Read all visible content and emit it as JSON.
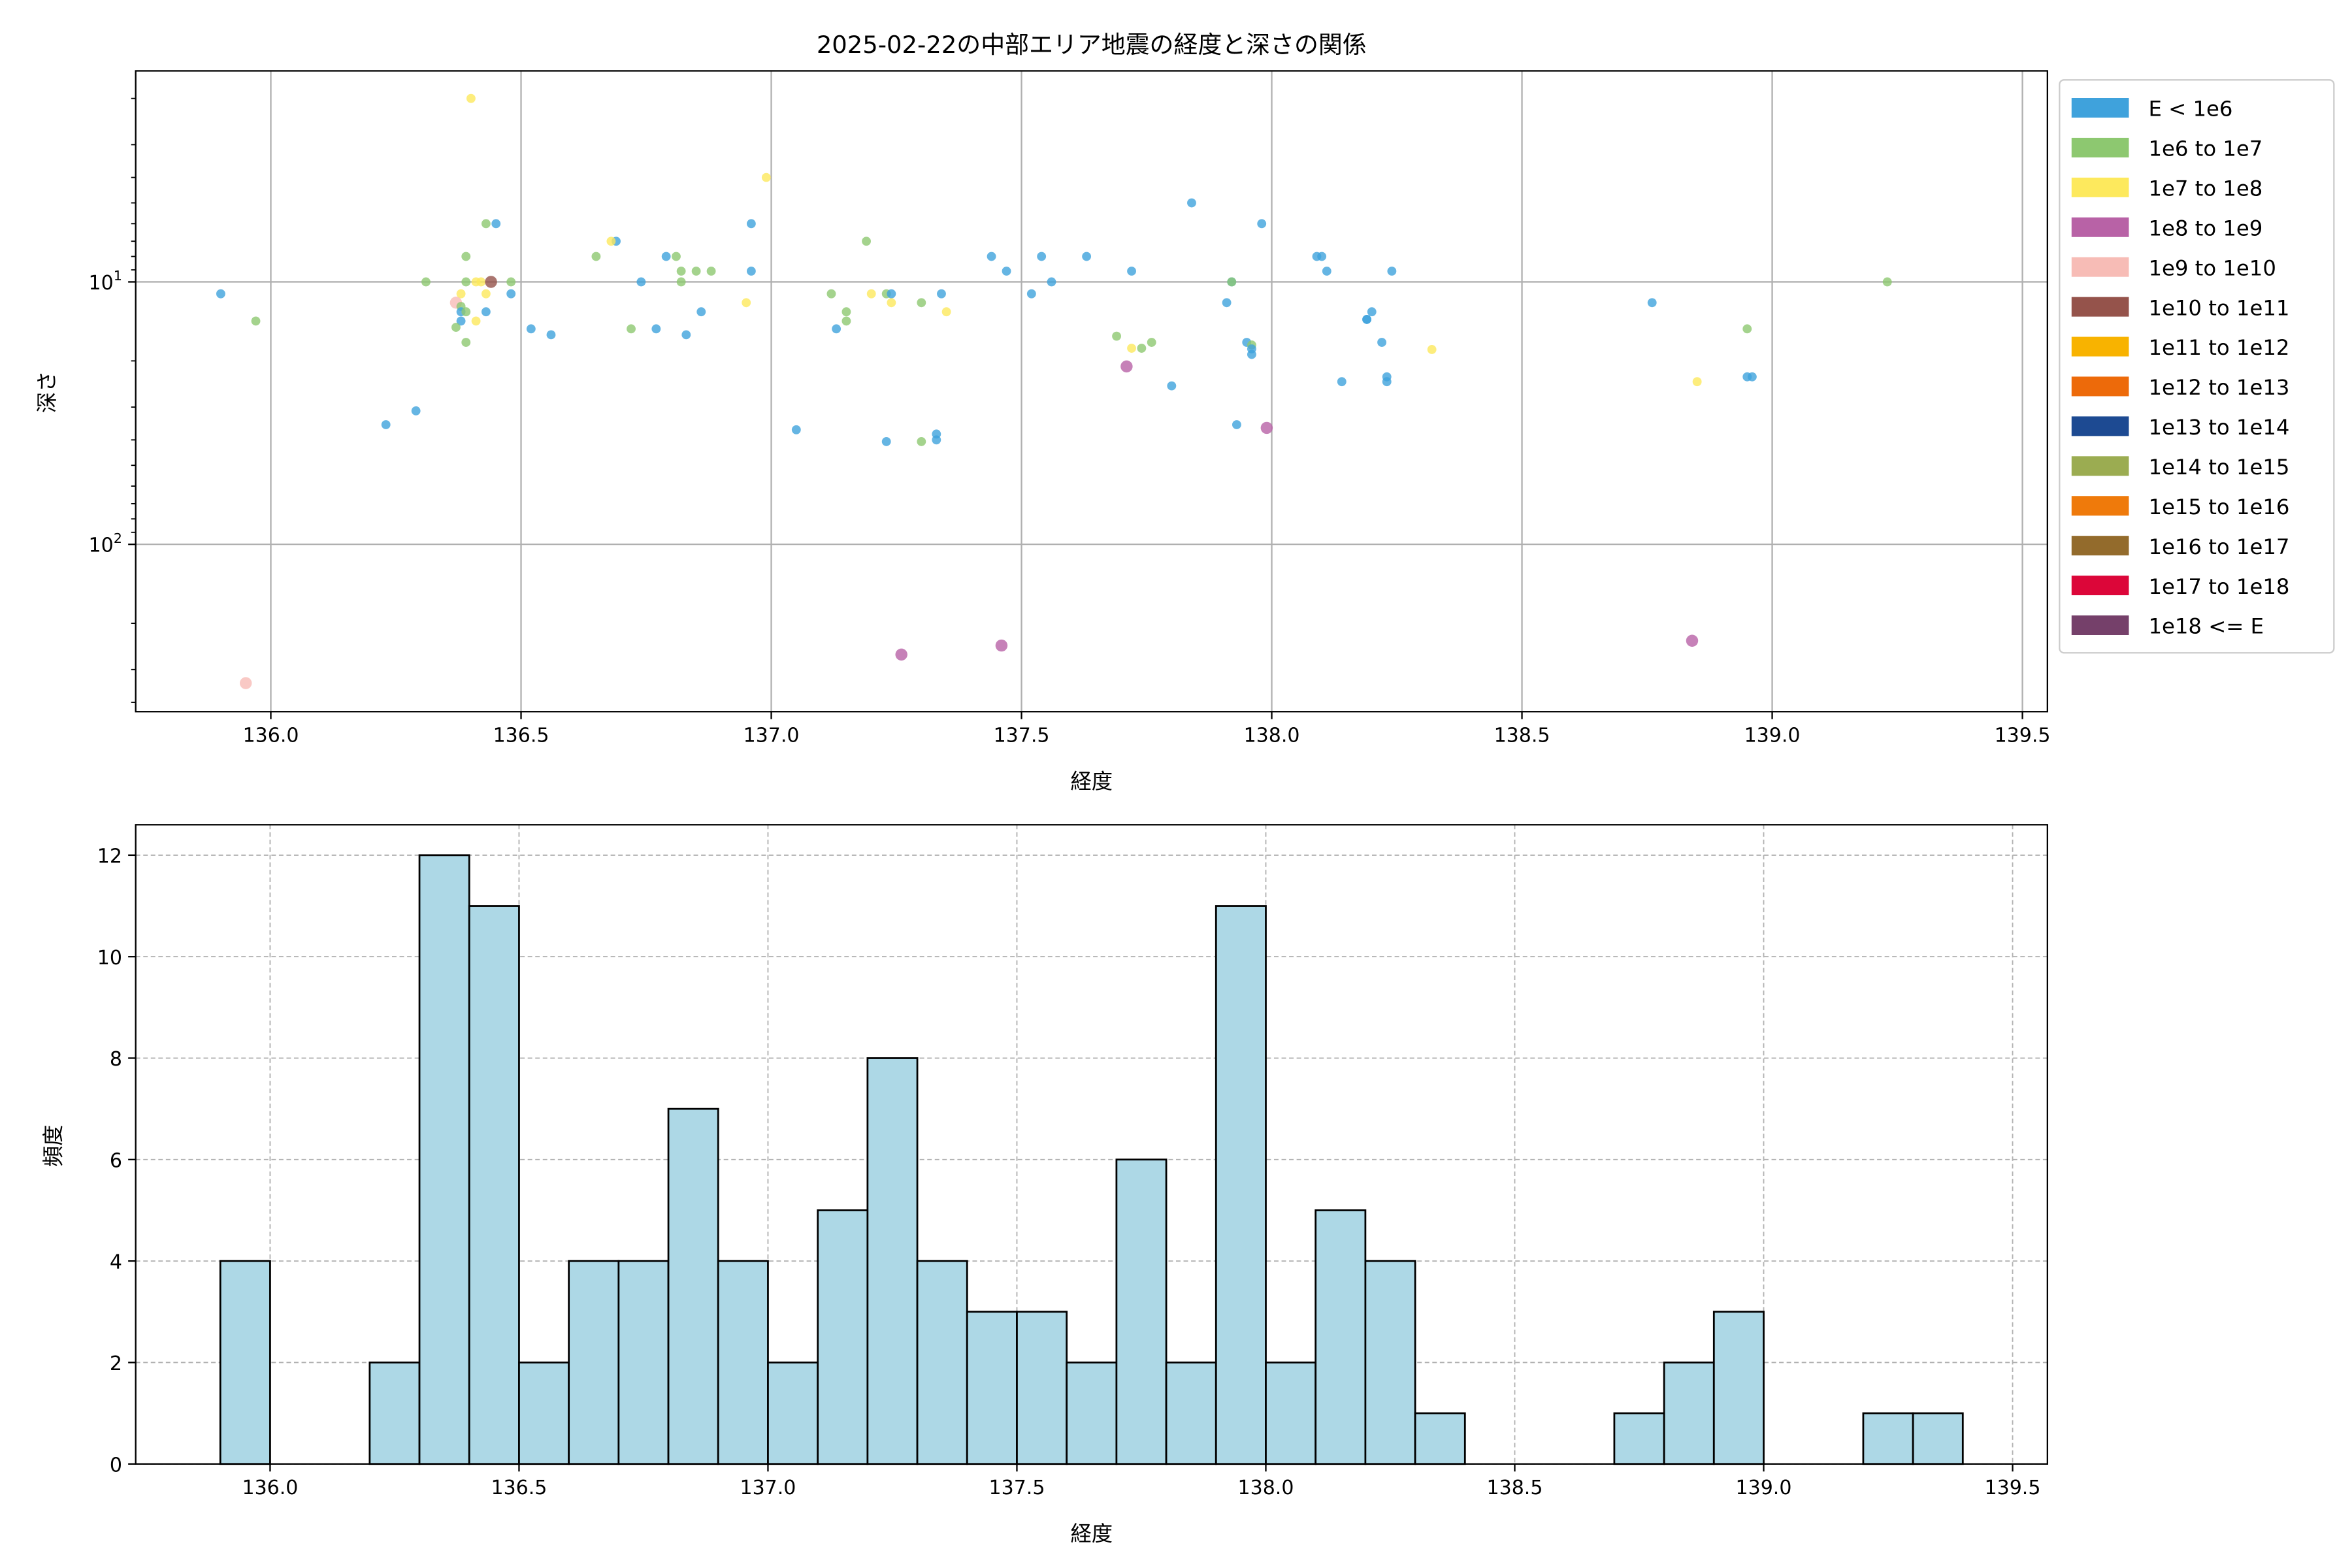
{
  "chart_data": [
    {
      "type": "scatter",
      "title": "2025-02-22の中部エリア地震の経度と深さの関係",
      "xlabel": "経度",
      "ylabel": "深さ",
      "xlim": [
        135.73,
        139.55
      ],
      "ylim": [
        434,
        1.57
      ],
      "yscale": "log",
      "y_inverted": true,
      "xticks": [
        136.0,
        136.5,
        137.0,
        137.5,
        138.0,
        138.5,
        139.0,
        139.5
      ],
      "yticks": [
        {
          "value": 10,
          "base": "10",
          "exp": "1"
        },
        {
          "value": 100,
          "base": "10",
          "exp": "2"
        }
      ],
      "grid": true,
      "legend": {
        "placement": "outside-right",
        "entries": [
          {
            "key": "b",
            "label": "E < 1e6",
            "color": "#3fa2dc"
          },
          {
            "key": "g",
            "label": "1e6 to 1e7",
            "color": "#8dc870"
          },
          {
            "key": "y",
            "label": "1e7 to 1e8",
            "color": "#fde95d"
          },
          {
            "key": "p",
            "label": "1e8 to 1e9",
            "color": "#b862a6"
          },
          {
            "key": "k",
            "label": "1e9 to 1e10",
            "color": "#f7bcb6"
          },
          {
            "key": "r",
            "label": "1e10 to 1e11",
            "color": "#95534b"
          },
          {
            "key": "o",
            "label": "1e11 to 1e12",
            "color": "#f8b300"
          },
          {
            "key": "q",
            "label": "1e12 to 1e13",
            "color": "#ed6a0a"
          },
          {
            "key": "n",
            "label": "1e13 to 1e14",
            "color": "#1d4a92"
          },
          {
            "key": "l",
            "label": "1e14 to 1e15",
            "color": "#9bac51"
          },
          {
            "key": "m",
            "label": "1e15 to 1e16",
            "color": "#ef7a0b"
          },
          {
            "key": "u",
            "label": "1e16 to 1e17",
            "color": "#936b2c"
          },
          {
            "key": "c",
            "label": "1e17 to 1e18",
            "color": "#dc0639"
          },
          {
            "key": "v",
            "label": "1e18 <= E",
            "color": "#75406a"
          }
        ]
      },
      "points": [
        [
          135.9,
          11.1,
          "b"
        ],
        [
          135.97,
          14.1,
          "g"
        ],
        [
          135.95,
          338,
          "k"
        ],
        [
          136.23,
          35,
          "b"
        ],
        [
          136.29,
          31,
          "b"
        ],
        [
          136.31,
          10,
          "g"
        ],
        [
          136.4,
          2.0,
          "y"
        ],
        [
          136.39,
          8.0,
          "g"
        ],
        [
          136.43,
          6.0,
          "g"
        ],
        [
          136.45,
          6.0,
          "b"
        ],
        [
          136.39,
          10,
          "g"
        ],
        [
          136.41,
          10,
          "y"
        ],
        [
          136.42,
          10,
          "y"
        ],
        [
          136.48,
          10,
          "g"
        ],
        [
          136.48,
          11.1,
          "b"
        ],
        [
          136.38,
          11.1,
          "y"
        ],
        [
          136.43,
          11.1,
          "y"
        ],
        [
          136.37,
          12.0,
          "k"
        ],
        [
          136.38,
          12.4,
          "g"
        ],
        [
          136.38,
          13,
          "b"
        ],
        [
          136.39,
          13,
          "g"
        ],
        [
          136.43,
          13,
          "b"
        ],
        [
          136.38,
          14.1,
          "b"
        ],
        [
          136.41,
          14.1,
          "y"
        ],
        [
          136.37,
          14.9,
          "g"
        ],
        [
          136.39,
          17,
          "g"
        ],
        [
          136.52,
          15.1,
          "b"
        ],
        [
          136.56,
          15.9,
          "b"
        ],
        [
          136.65,
          8.0,
          "g"
        ],
        [
          136.69,
          7.0,
          "b"
        ],
        [
          136.68,
          7.0,
          "y"
        ],
        [
          136.72,
          15.1,
          "g"
        ],
        [
          136.74,
          10,
          "b"
        ],
        [
          136.77,
          15.1,
          "b"
        ],
        [
          136.79,
          8,
          "b"
        ],
        [
          136.81,
          8,
          "g"
        ],
        [
          136.82,
          10,
          "g"
        ],
        [
          136.82,
          9.1,
          "g"
        ],
        [
          136.85,
          9.1,
          "g"
        ],
        [
          136.88,
          9.1,
          "g"
        ],
        [
          136.83,
          15.9,
          "b"
        ],
        [
          136.86,
          13,
          "b"
        ],
        [
          136.95,
          12,
          "y"
        ],
        [
          136.96,
          6,
          "b"
        ],
        [
          136.96,
          9.1,
          "b"
        ],
        [
          136.99,
          4.0,
          "y"
        ],
        [
          137.05,
          36.6,
          "b"
        ],
        [
          137.12,
          11.1,
          "g"
        ],
        [
          137.13,
          15.1,
          "b"
        ],
        [
          137.15,
          13,
          "g"
        ],
        [
          137.15,
          14.1,
          "g"
        ],
        [
          137.19,
          7,
          "g"
        ],
        [
          137.2,
          11.1,
          "y"
        ],
        [
          137.23,
          11.1,
          "g"
        ],
        [
          137.24,
          11.1,
          "b"
        ],
        [
          137.24,
          12,
          "y"
        ],
        [
          137.23,
          40.6,
          "b"
        ],
        [
          137.3,
          40.6,
          "g"
        ],
        [
          137.3,
          12,
          "g"
        ],
        [
          137.33,
          38,
          "b"
        ],
        [
          137.33,
          40,
          "b"
        ],
        [
          137.34,
          11.1,
          "b"
        ],
        [
          137.35,
          13,
          "y"
        ],
        [
          137.26,
          263,
          "p"
        ],
        [
          137.44,
          8,
          "b"
        ],
        [
          137.47,
          9.1,
          "b"
        ],
        [
          137.46,
          243,
          "p"
        ],
        [
          137.52,
          11.1,
          "b"
        ],
        [
          137.54,
          8,
          "b"
        ],
        [
          137.56,
          10,
          "b"
        ],
        [
          137.63,
          8,
          "b"
        ],
        [
          137.69,
          16.1,
          "g"
        ],
        [
          137.71,
          21,
          "p"
        ],
        [
          137.72,
          9.1,
          "b"
        ],
        [
          137.72,
          17.9,
          "y"
        ],
        [
          137.74,
          17.9,
          "g"
        ],
        [
          137.76,
          17,
          "g"
        ],
        [
          137.8,
          24.9,
          "b"
        ],
        [
          137.84,
          5.0,
          "b"
        ],
        [
          137.91,
          12,
          "b"
        ],
        [
          137.92,
          10,
          "b"
        ],
        [
          137.92,
          10,
          "g"
        ],
        [
          137.93,
          35,
          "b"
        ],
        [
          137.95,
          17,
          "b"
        ],
        [
          137.96,
          17.4,
          "g"
        ],
        [
          137.96,
          18,
          "b"
        ],
        [
          137.96,
          18.9,
          "b"
        ],
        [
          137.98,
          6,
          "b"
        ],
        [
          137.99,
          36,
          "p"
        ],
        [
          138.09,
          8,
          "b"
        ],
        [
          138.1,
          8,
          "b"
        ],
        [
          138.11,
          9.1,
          "b"
        ],
        [
          138.14,
          24,
          "b"
        ],
        [
          138.19,
          13.9,
          "b"
        ],
        [
          138.19,
          13.9,
          "b"
        ],
        [
          138.2,
          13,
          "b"
        ],
        [
          138.22,
          17,
          "b"
        ],
        [
          138.23,
          23,
          "b"
        ],
        [
          138.23,
          24,
          "b"
        ],
        [
          138.24,
          9.1,
          "b"
        ],
        [
          138.32,
          18.1,
          "y"
        ],
        [
          138.76,
          12,
          "b"
        ],
        [
          138.85,
          24,
          "y"
        ],
        [
          138.84,
          233,
          "p"
        ],
        [
          138.95,
          23,
          "b"
        ],
        [
          138.96,
          23,
          "b"
        ],
        [
          138.95,
          15.1,
          "g"
        ],
        [
          139.23,
          10,
          "g"
        ],
        [
          136.44,
          10,
          "r"
        ]
      ]
    },
    {
      "type": "bar",
      "subtype": "histogram",
      "xlabel": "経度",
      "ylabel": "頻度",
      "xlim": [
        135.73,
        139.57
      ],
      "ylim": [
        0,
        12.6
      ],
      "xticks": [
        136.0,
        136.5,
        137.0,
        137.5,
        138.0,
        138.5,
        139.0,
        139.5
      ],
      "yticks": [
        0,
        2,
        4,
        6,
        8,
        10,
        12
      ],
      "bin_width": 0.1,
      "bin_start": 135.9,
      "counts": [
        4,
        0,
        0,
        2,
        12,
        11,
        2,
        4,
        4,
        7,
        4,
        2,
        5,
        8,
        4,
        3,
        3,
        2,
        6,
        2,
        11,
        2,
        5,
        4,
        1,
        0,
        0,
        0,
        1,
        2,
        3,
        0,
        0,
        1,
        1
      ],
      "bar_color": "#add8e6",
      "edge_color": "#000000",
      "grid": "dashed"
    }
  ]
}
